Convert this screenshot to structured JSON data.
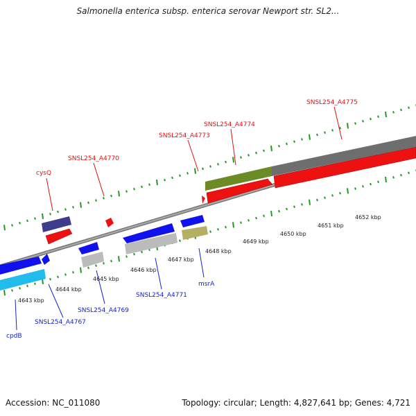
{
  "title": "Salmonella enterica subsp. enterica serovar Newport str. SL2...",
  "footer": {
    "accession": "Accession: NC_011080",
    "topology": "Topology: circular; Length: 4,827,641 bp; Genes: 4,721"
  },
  "scale_labels": [
    "4643 kbp",
    "4644 kbp",
    "4645 kbp",
    "4646 kbp",
    "4647 kbp",
    "4648 kbp",
    "4649 kbp",
    "4650 kbp",
    "4651 kbp",
    "4652 kbp"
  ],
  "forward_labels": [
    "cysQ",
    "SNSL254_A4770",
    "SNSL254_A4773",
    "SNSL254_A4774",
    "SNSL254_A4775"
  ],
  "reverse_labels": [
    "cpdB",
    "SNSL254_A4767",
    "SNSL254_A4769",
    "SNSL254_A4771",
    "msrA"
  ],
  "colors": {
    "forward_label": "#dd1111",
    "reverse_label": "#1122cc",
    "cds_forward": "#ee1111",
    "cds_reverse": "#1111ee",
    "tick": "#229922",
    "backbone": "#888888"
  }
}
